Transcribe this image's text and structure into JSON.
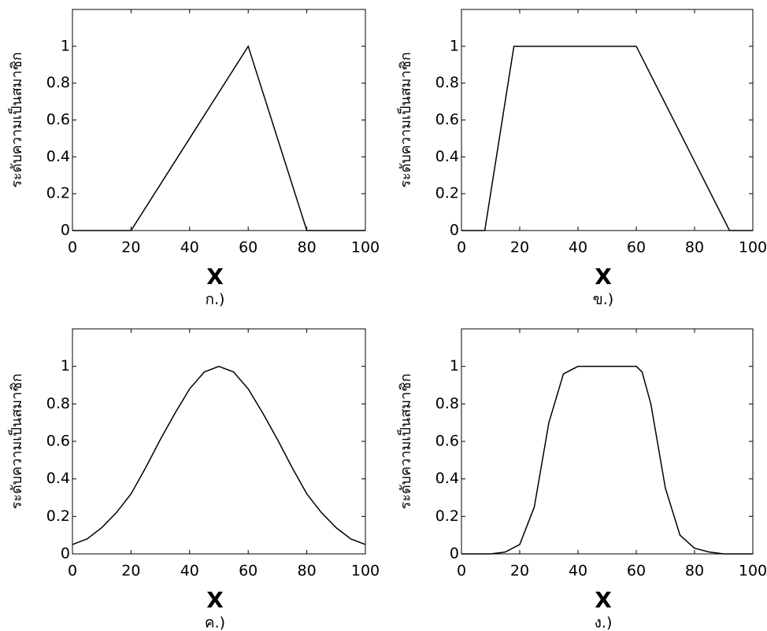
{
  "chart_data": [
    {
      "type": "line",
      "x": [
        0,
        20,
        60,
        80,
        100
      ],
      "values": [
        0,
        0,
        1,
        0,
        0
      ],
      "color": "#000000",
      "xlim": [
        0,
        100
      ],
      "ylim": [
        0,
        1.2
      ],
      "xticks": [
        0,
        20,
        40,
        60,
        80,
        100
      ],
      "yticks": [
        0,
        0.2,
        0.4,
        0.6,
        0.8,
        1
      ],
      "xlabel": "X",
      "ylabel": "ระดับความเป็นสมาชิก",
      "caption": "ก.)"
    },
    {
      "type": "line",
      "x": [
        0,
        8,
        18,
        60,
        92,
        100
      ],
      "values": [
        0,
        0,
        1,
        1,
        0,
        0
      ],
      "color": "#000000",
      "xlim": [
        0,
        100
      ],
      "ylim": [
        0,
        1.2
      ],
      "xticks": [
        0,
        20,
        40,
        60,
        80,
        100
      ],
      "yticks": [
        0,
        0.2,
        0.4,
        0.6,
        0.8,
        1
      ],
      "xlabel": "X",
      "ylabel": "ระดับความเป็นสมาชิก",
      "caption": "ข.)"
    },
    {
      "type": "line",
      "x": [
        0,
        5,
        10,
        15,
        20,
        25,
        30,
        35,
        40,
        45,
        50,
        55,
        60,
        65,
        70,
        75,
        80,
        85,
        90,
        95,
        100
      ],
      "values": [
        0.05,
        0.08,
        0.14,
        0.22,
        0.32,
        0.46,
        0.61,
        0.75,
        0.88,
        0.97,
        1,
        0.97,
        0.88,
        0.75,
        0.61,
        0.46,
        0.32,
        0.22,
        0.14,
        0.08,
        0.05
      ],
      "color": "#000000",
      "xlim": [
        0,
        100
      ],
      "ylim": [
        0,
        1.2
      ],
      "xticks": [
        0,
        20,
        40,
        60,
        80,
        100
      ],
      "yticks": [
        0,
        0.2,
        0.4,
        0.6,
        0.8,
        1
      ],
      "xlabel": "X",
      "ylabel": "ระดับความเป็นสมาชิก",
      "caption": "ค.)"
    },
    {
      "type": "line",
      "x": [
        0,
        10,
        15,
        20,
        25,
        30,
        35,
        40,
        60,
        62,
        65,
        70,
        75,
        80,
        85,
        90,
        100
      ],
      "values": [
        0,
        0,
        0.01,
        0.05,
        0.25,
        0.7,
        0.96,
        1,
        1,
        0.97,
        0.8,
        0.35,
        0.1,
        0.03,
        0.01,
        0,
        0
      ],
      "color": "#000000",
      "xlim": [
        0,
        100
      ],
      "ylim": [
        0,
        1.2
      ],
      "xticks": [
        0,
        20,
        40,
        60,
        80,
        100
      ],
      "yticks": [
        0,
        0.2,
        0.4,
        0.6,
        0.8,
        1
      ],
      "xlabel": "X",
      "ylabel": "ระดับความเป็นสมาชิก",
      "caption": "ง.)"
    }
  ]
}
